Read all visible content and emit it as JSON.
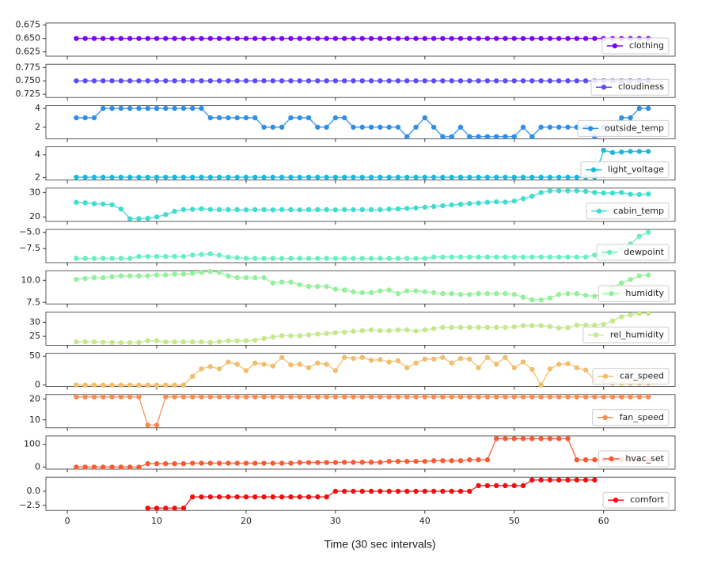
{
  "chart_data": {
    "type": "line",
    "xlabel": "Time (30 sec intervals)",
    "legend": "lower right",
    "xlim": [
      -2.4,
      68
    ],
    "xticks": [
      0,
      10,
      20,
      30,
      40,
      50,
      60
    ],
    "x": [
      1,
      2,
      3,
      4,
      5,
      6,
      7,
      8,
      9,
      10,
      11,
      12,
      13,
      14,
      15,
      16,
      17,
      18,
      19,
      20,
      21,
      22,
      23,
      24,
      25,
      26,
      27,
      28,
      29,
      30,
      31,
      32,
      33,
      34,
      35,
      36,
      37,
      38,
      39,
      40,
      41,
      42,
      43,
      44,
      45,
      46,
      47,
      48,
      49,
      50,
      51,
      52,
      53,
      54,
      55,
      56,
      57,
      58,
      59,
      60,
      61,
      62,
      63,
      64,
      65
    ],
    "panels": [
      {
        "ylim": [
          0.617,
          0.679
        ],
        "yticks": [
          0.625,
          {
            "value": 0.65,
            "label": "0.650"
          },
          0.675
        ],
        "series": [
          {
            "name": "clothing",
            "color": "#7f00ff",
            "values": [
              0.65,
              0.65,
              0.65,
              0.65,
              0.65,
              0.65,
              0.65,
              0.65,
              0.65,
              0.65,
              0.65,
              0.65,
              0.65,
              0.65,
              0.65,
              0.65,
              0.65,
              0.65,
              0.65,
              0.65,
              0.65,
              0.65,
              0.65,
              0.65,
              0.65,
              0.65,
              0.65,
              0.65,
              0.65,
              0.65,
              0.65,
              0.65,
              0.65,
              0.65,
              0.65,
              0.65,
              0.65,
              0.65,
              0.65,
              0.65,
              0.65,
              0.65,
              0.65,
              0.65,
              0.65,
              0.65,
              0.65,
              0.65,
              0.65,
              0.65,
              0.65,
              0.65,
              0.65,
              0.65,
              0.65,
              0.65,
              0.65,
              0.65,
              0.65,
              0.65,
              0.65,
              0.65,
              0.65,
              0.65,
              0.65
            ]
          }
        ]
      },
      {
        "ylim": [
          0.719,
          0.781
        ],
        "yticks": [
          0.725,
          {
            "value": 0.75,
            "label": "0.750"
          },
          0.775
        ],
        "series": [
          {
            "name": "cloudiness",
            "color": "#5a4ef8",
            "values": [
              0.75,
              0.75,
              0.75,
              0.75,
              0.75,
              0.75,
              0.75,
              0.75,
              0.75,
              0.75,
              0.75,
              0.75,
              0.75,
              0.75,
              0.75,
              0.75,
              0.75,
              0.75,
              0.75,
              0.75,
              0.75,
              0.75,
              0.75,
              0.75,
              0.75,
              0.75,
              0.75,
              0.75,
              0.75,
              0.75,
              0.75,
              0.75,
              0.75,
              0.75,
              0.75,
              0.75,
              0.75,
              0.75,
              0.75,
              0.75,
              0.75,
              0.75,
              0.75,
              0.75,
              0.75,
              0.75,
              0.75,
              0.75,
              0.75,
              0.75,
              0.75,
              0.75,
              0.75,
              0.75,
              0.75,
              0.75,
              0.75,
              0.75,
              0.75,
              0.75,
              0.75,
              0.75,
              0.75,
              0.75,
              0.75
            ]
          }
        ]
      },
      {
        "ylim": [
          0.77,
          4.3
        ],
        "yticks": [
          2,
          4
        ],
        "series": [
          {
            "name": "outside_temp",
            "color": "#2f8ee8",
            "values": [
              3,
              3,
              3,
              4,
              4,
              4,
              4,
              4,
              4,
              4,
              4,
              4,
              4,
              4,
              4,
              3,
              3,
              3,
              3,
              3,
              3,
              2,
              2,
              2,
              3,
              3,
              3,
              2,
              2,
              3,
              3,
              2,
              2,
              2,
              2,
              2,
              2,
              1,
              2,
              3,
              2,
              1,
              1,
              2,
              1,
              1,
              1,
              1,
              1,
              1,
              2,
              1,
              2,
              2,
              2,
              2,
              2,
              2,
              1,
              2,
              2,
              3,
              3,
              4,
              4
            ]
          }
        ]
      },
      {
        "ylim": [
          1.8,
          4.7
        ],
        "yticks": [
          2,
          4
        ],
        "series": [
          {
            "name": "light_voltage",
            "color": "#1cb8dc",
            "values": [
              2.05,
              2.05,
              2.05,
              2.05,
              2.05,
              2.05,
              2.05,
              2.05,
              2.05,
              2.05,
              2.05,
              2.05,
              2.05,
              2.05,
              2.05,
              2.05,
              2.05,
              2.05,
              2.05,
              2.05,
              2.05,
              2.05,
              2.05,
              2.05,
              2.05,
              2.05,
              2.05,
              2.05,
              2.05,
              2.05,
              2.05,
              2.05,
              2.05,
              2.05,
              2.05,
              2.05,
              2.05,
              2.05,
              2.05,
              2.05,
              2.05,
              2.05,
              2.05,
              2.05,
              2.05,
              2.05,
              2.05,
              2.05,
              2.05,
              2.05,
              2.05,
              2.05,
              2.05,
              2.05,
              2.05,
              2.05,
              2.05,
              2.05,
              2.05,
              4.4,
              4.2,
              4.25,
              4.3,
              4.3,
              4.3
            ]
          }
        ]
      },
      {
        "ylim": [
          18.2,
          31.8
        ],
        "yticks": [
          20,
          30
        ],
        "series": [
          {
            "name": "cabin_temp",
            "color": "#3fdcd0",
            "values": [
              26,
              25.8,
              25.4,
              25.3,
              25.0,
              23.2,
              19.3,
              19.3,
              19.4,
              20,
              21,
              22.3,
              23,
              23.1,
              23.3,
              23.1,
              23,
              23,
              23,
              22.9,
              23,
              23,
              22.9,
              23,
              23,
              22.9,
              23,
              23,
              23,
              22.9,
              23,
              23,
              23,
              23,
              23,
              23.2,
              23.3,
              23.5,
              23.7,
              24,
              24.3,
              24.6,
              24.9,
              25.2,
              25.5,
              25.7,
              26,
              26.2,
              26.1,
              26.5,
              27.5,
              28.5,
              30,
              30.7,
              30.7,
              30.7,
              30.7,
              30.5,
              30,
              29.8,
              29.8,
              30,
              29.3,
              29.2,
              29.4
            ]
          }
        ]
      },
      {
        "ylim": [
          -9.66,
          -4.55
        ],
        "yticks": [
          {
            "value": -7.5,
            "label": "−7.5"
          },
          {
            "value": -5.0,
            "label": "−5.0"
          }
        ],
        "series": [
          {
            "name": "dewpoint",
            "color": "#66f0c0",
            "values": [
              -9,
              -9,
              -9,
              -9,
              -9,
              -9,
              -9,
              -8.7,
              -8.7,
              -8.7,
              -8.7,
              -8.7,
              -8.7,
              -8.5,
              -8.4,
              -8.3,
              -8.5,
              -8.8,
              -8.9,
              -9,
              -9,
              -9,
              -9,
              -9,
              -9,
              -9,
              -9,
              -9,
              -9,
              -9,
              -9,
              -9,
              -9,
              -9,
              -9,
              -9,
              -9,
              -9,
              -9,
              -9,
              -8.8,
              -8.8,
              -8.8,
              -8.8,
              -8.8,
              -8.8,
              -8.8,
              -8.8,
              -8.8,
              -8.8,
              -8.8,
              -8.8,
              -8.8,
              -8.8,
              -8.8,
              -8.8,
              -8.8,
              -8.8,
              -8.5,
              -8.5,
              -8.4,
              -7.6,
              -6.8,
              -5.6,
              -5.0
            ]
          }
        ]
      },
      {
        "ylim": [
          7.33,
          11.08
        ],
        "yticks": [
          7.5,
          {
            "value": 10,
            "label": "10.0"
          }
        ],
        "series": [
          {
            "name": "humidity",
            "color": "#94f09c",
            "values": [
              10.1,
              10.2,
              10.3,
              10.3,
              10.4,
              10.5,
              10.5,
              10.5,
              10.5,
              10.6,
              10.6,
              10.7,
              10.7,
              10.8,
              10.9,
              11.0,
              10.9,
              10.5,
              10.3,
              10.3,
              10.3,
              10.3,
              9.7,
              9.8,
              9.8,
              9.5,
              9.3,
              9.3,
              9.3,
              9.0,
              8.9,
              8.7,
              8.6,
              8.6,
              8.8,
              8.9,
              8.5,
              8.8,
              8.8,
              8.7,
              8.6,
              8.5,
              8.5,
              8.4,
              8.4,
              8.5,
              8.5,
              8.5,
              8.5,
              8.4,
              8.1,
              7.8,
              7.8,
              8.0,
              8.4,
              8.5,
              8.5,
              8.3,
              8.2,
              8.5,
              9.2,
              9.7,
              10.1,
              10.5,
              10.6
            ]
          }
        ]
      },
      {
        "ylim": [
          21.8,
          33.7
        ],
        "yticks": [
          25,
          30
        ],
        "series": [
          {
            "name": "rel_humidity",
            "color": "#c4e88c",
            "values": [
              23,
              23,
              23,
              22.9,
              22.8,
              22.7,
              22.7,
              22.8,
              23.4,
              23.4,
              23,
              23,
              23,
              23,
              23,
              22.8,
              23.1,
              23.4,
              23.4,
              23.4,
              23.6,
              24.2,
              24.8,
              25.2,
              25.2,
              25.2,
              25.5,
              25.8,
              26,
              26.3,
              26.5,
              26.8,
              27,
              27.3,
              27,
              27,
              27.3,
              27.3,
              26.9,
              27.3,
              27.8,
              28.2,
              28.2,
              28.2,
              28.2,
              28.2,
              28.2,
              28.2,
              28.2,
              28.4,
              28.8,
              28.8,
              28.8,
              28.5,
              28,
              28.1,
              29,
              29,
              29,
              29.3,
              30.5,
              32,
              32.7,
              33.2,
              33.2
            ]
          }
        ]
      },
      {
        "ylim": [
          -2.6,
          55
        ],
        "yticks": [
          0,
          50
        ],
        "series": [
          {
            "name": "car_speed",
            "color": "#f0be6c",
            "values": [
              0,
              0,
              0,
              0,
              0,
              0,
              0,
              0,
              0,
              0,
              0,
              0,
              0,
              15,
              28,
              32,
              28,
              40,
              36,
              25,
              38,
              36,
              33,
              48,
              35,
              36,
              30,
              38,
              36,
              25,
              48,
              46,
              48,
              43,
              44,
              40,
              42,
              30,
              38,
              45,
              45,
              48,
              38,
              46,
              45,
              30,
              48,
              36,
              48,
              30,
              40,
              27,
              0,
              28,
              36,
              37,
              30,
              26,
              8,
              5,
              3,
              3,
              3,
              3,
              3
            ]
          }
        ]
      },
      {
        "ylim": [
          6.2,
          22.1
        ],
        "yticks": [
          10,
          20
        ],
        "series": [
          {
            "name": "fan_speed",
            "color": "#fa8c52",
            "values": [
              21,
              21,
              21,
              21,
              21,
              21,
              21,
              21,
              7.5,
              7.5,
              21,
              21,
              21,
              21,
              21,
              21,
              21,
              21,
              21,
              21,
              21,
              21,
              21,
              21,
              21,
              21,
              21,
              21,
              21,
              21,
              21,
              21,
              21,
              21,
              21,
              21,
              21,
              21,
              21,
              21,
              21,
              21,
              21,
              21,
              21,
              21,
              21,
              21,
              21,
              21,
              21,
              21,
              21,
              21,
              21,
              21,
              21,
              21,
              21,
              21,
              21,
              21,
              21,
              21,
              21
            ]
          }
        ]
      },
      {
        "ylim": [
          -9,
          137
        ],
        "yticks": [
          0,
          100
        ],
        "series": [
          {
            "name": "hvac_set",
            "color": "#f85a34",
            "values": [
              0,
              0,
              0,
              0,
              0,
              0,
              0,
              0,
              15,
              15,
              15,
              15,
              15,
              17,
              17,
              17,
              17,
              17,
              17,
              17,
              17,
              17,
              17,
              17,
              17,
              20,
              20,
              20,
              20,
              20,
              21,
              21,
              21,
              21,
              21,
              25,
              25,
              25,
              25,
              25,
              28,
              28,
              28,
              28,
              32,
              32,
              32,
              125,
              125,
              125,
              125,
              125,
              125,
              125,
              125,
              125,
              32,
              32,
              32,
              32,
              32,
              32,
              32,
              32,
              32
            ]
          }
        ]
      },
      {
        "ylim": [
          -3.4,
          2.5
        ],
        "yticks": [
          {
            "value": -2.5,
            "label": "−2.5"
          },
          {
            "value": 0,
            "label": "0.0"
          }
        ],
        "series": [
          {
            "name": "comfort",
            "color": "#ee1010",
            "values": [
              null,
              null,
              null,
              null,
              null,
              null,
              null,
              null,
              -3,
              -3,
              -3,
              -3,
              -3,
              -1,
              -1,
              -1,
              -1,
              -1,
              -1,
              -1,
              -1,
              -1,
              -1,
              -1,
              -1,
              -1,
              -1,
              -1,
              -1,
              0,
              0,
              0,
              0,
              0,
              0,
              0,
              0,
              0,
              0,
              0,
              0,
              0,
              0,
              0,
              0,
              1,
              1,
              1,
              1,
              1,
              1,
              2,
              2,
              2,
              2,
              2,
              2,
              2,
              2,
              null,
              null,
              null,
              null,
              null,
              null
            ]
          }
        ]
      }
    ]
  }
}
